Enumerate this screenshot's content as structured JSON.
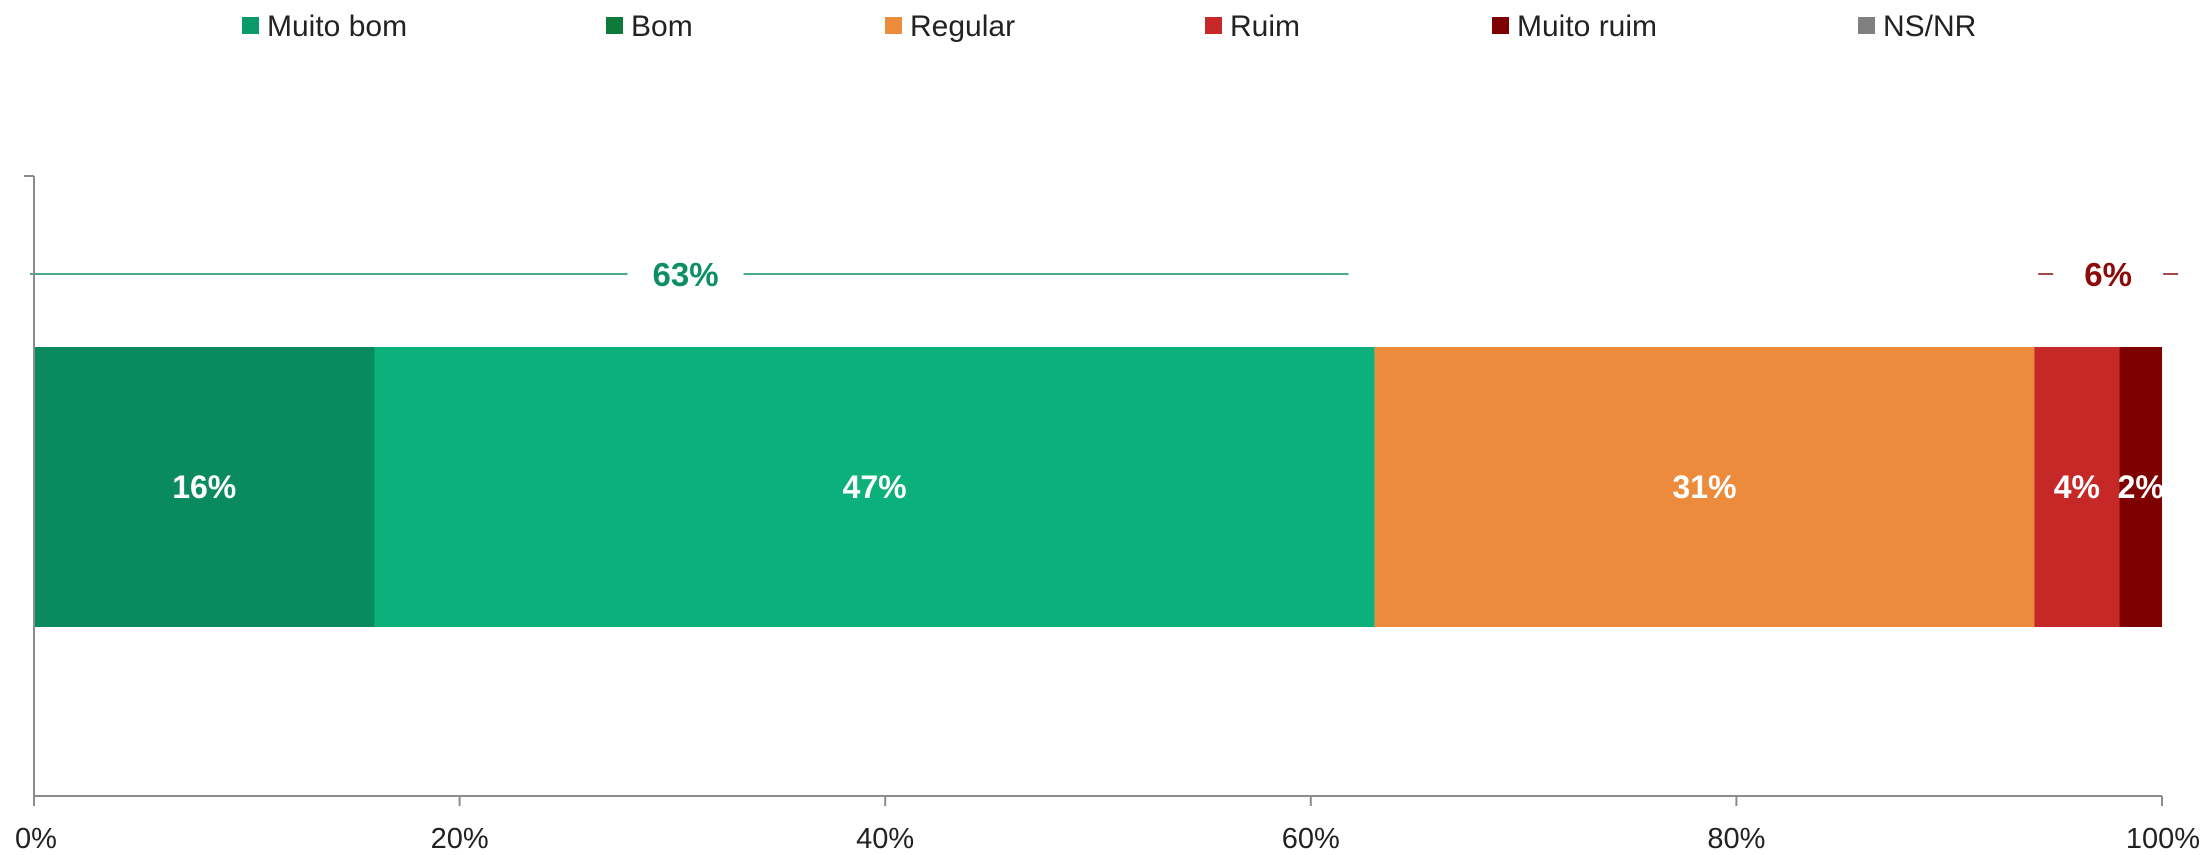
{
  "chart_data": {
    "type": "bar",
    "orientation": "horizontal",
    "stacked": true,
    "legend_position": "top",
    "grid": false,
    "x_range": [
      0,
      100
    ],
    "x_ticks": [
      "0%",
      "20%",
      "40%",
      "60%",
      "80%",
      "100%"
    ],
    "series": [
      {
        "name": "Muito bom",
        "value": 16,
        "label": "16%",
        "color": "#0a8a5f",
        "legend_color": "#0b9a6a"
      },
      {
        "name": "Bom",
        "value": 47,
        "label": "47%",
        "color": "#0bb07a",
        "legend_color": "#0e7a3a"
      },
      {
        "name": "Regular",
        "value": 31,
        "label": "31%",
        "color": "#ec8b3c",
        "legend_color": "#ec8b3c"
      },
      {
        "name": "Ruim",
        "value": 4,
        "label": "4%",
        "color": "#c62828",
        "legend_color": "#c62828"
      },
      {
        "name": "Muito ruim",
        "value": 2,
        "label": "2%",
        "color": "#7f0000",
        "legend_color": "#7f0000"
      },
      {
        "name": "NS/NR",
        "value": 0,
        "label": "",
        "color": "#808080",
        "legend_color": "#808080"
      }
    ],
    "group_annotations": [
      {
        "label": "63%",
        "from": 0,
        "to": 63,
        "color": "#0b8f63"
      },
      {
        "label": "6%",
        "from": 94,
        "to": 100,
        "color": "#8b0a0a"
      }
    ]
  }
}
